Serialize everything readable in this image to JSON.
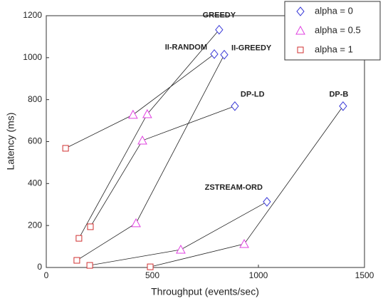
{
  "chart_data": {
    "type": "scatter",
    "x_label": "Throughput (events/sec)",
    "y_label": "Latency (ms)",
    "categories": [
      "GREEDY",
      "II-RANDOM",
      "II-GREEDY",
      "DP-LD",
      "ZSTREAM-ORD",
      "DP-B"
    ],
    "series": [
      {
        "name": "alpha = 0",
        "color": "#3a3ad8",
        "marker": "diamond",
        "x": [
          815,
          792,
          839,
          889,
          1040,
          1399
        ],
        "values": [
          1133,
          1017,
          1014,
          769,
          313,
          769
        ]
      },
      {
        "name": "alpha = 0.5",
        "color": "#e040e0",
        "marker": "triangle",
        "x": [
          476,
          409,
          423,
          453,
          634,
          933
        ],
        "values": [
          731,
          728,
          211,
          605,
          85,
          112
        ]
      },
      {
        "name": "alpha = 1",
        "color": "#d03030",
        "marker": "square",
        "x": [
          154,
          91,
          144,
          208,
          205,
          490
        ],
        "values": [
          139,
          568,
          34,
          194,
          10,
          3
        ]
      }
    ],
    "xlim": [
      0,
      1500
    ],
    "xticks": [
      0,
      500,
      1000,
      1500
    ],
    "ylim": [
      0,
      1200
    ],
    "yticks": [
      0,
      200,
      400,
      600,
      800,
      1000,
      1200
    ],
    "legend": "upper-right"
  }
}
